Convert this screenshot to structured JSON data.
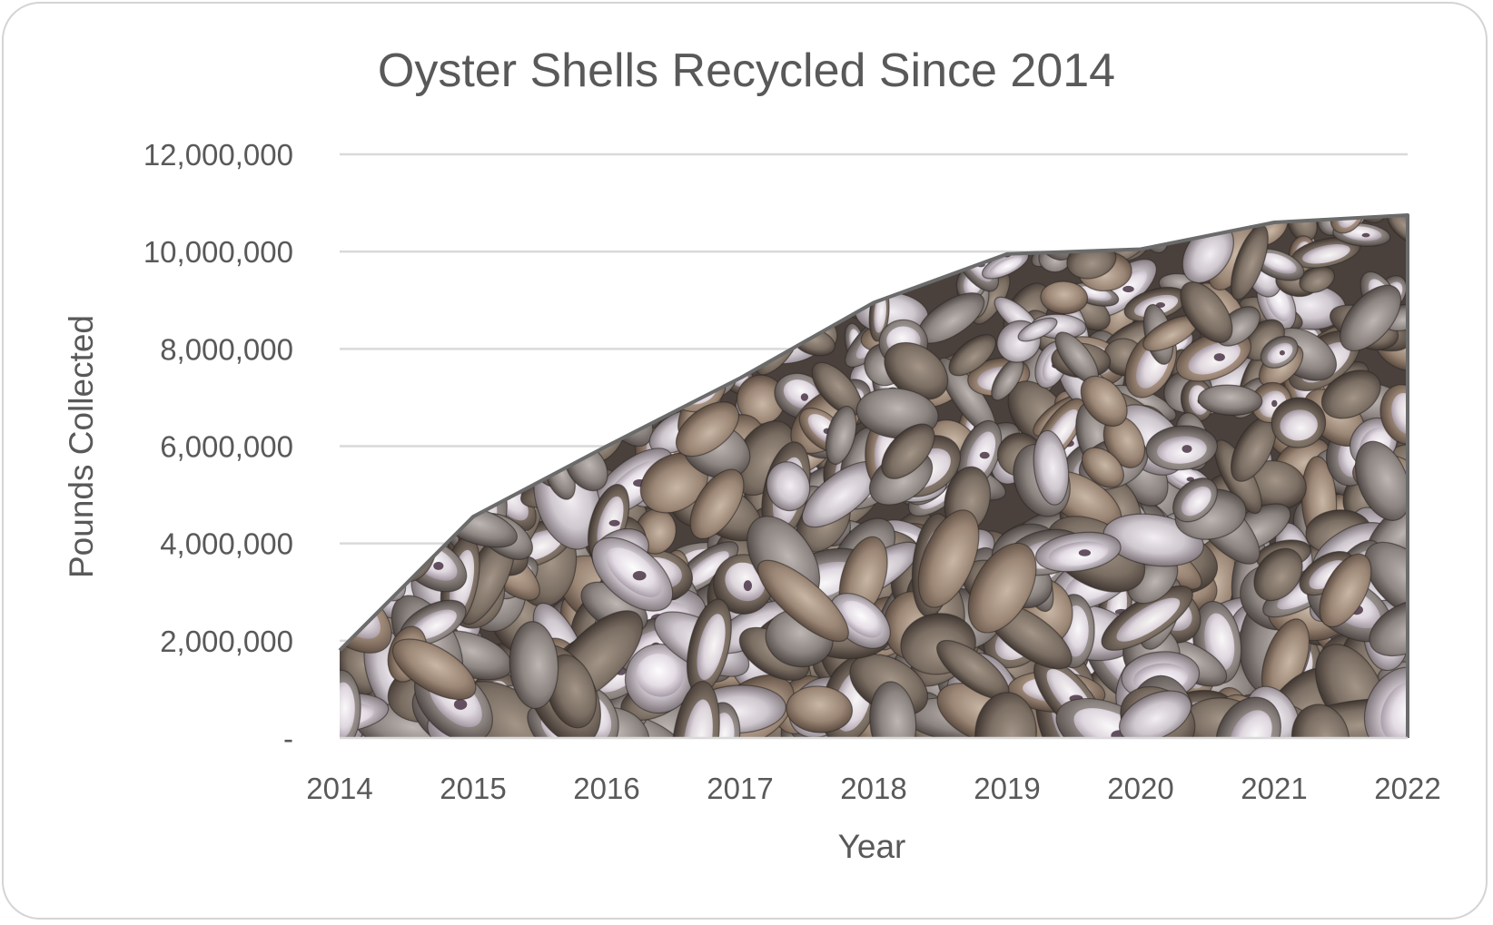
{
  "chart_data": {
    "type": "area",
    "title": "Oyster Shells Recycled Since 2014",
    "xlabel": "Year",
    "ylabel": "Pounds Collected",
    "categories": [
      "2014",
      "2015",
      "2016",
      "2017",
      "2018",
      "2019",
      "2020",
      "2021",
      "2022"
    ],
    "series": [
      {
        "values": [
          1800000,
          4550000,
          6000000,
          7400000,
          8950000,
          9950000,
          10050000,
          10600000,
          10750000
        ]
      }
    ],
    "ylim": [
      0,
      12000000
    ],
    "y_ticks": [
      0,
      2000000,
      4000000,
      6000000,
      8000000,
      10000000,
      12000000
    ],
    "y_tick_labels": [
      "-",
      "2,000,000",
      "4,000,000",
      "6,000,000",
      "8,000,000",
      "10,000,000",
      "12,000,000"
    ],
    "grid": true,
    "fill": "photo of oyster shells",
    "colors": {
      "outline": "#6b6b6b",
      "text": "#595959",
      "gridline": "#d9d9d9",
      "frame_border": "#d4d4d4"
    }
  }
}
